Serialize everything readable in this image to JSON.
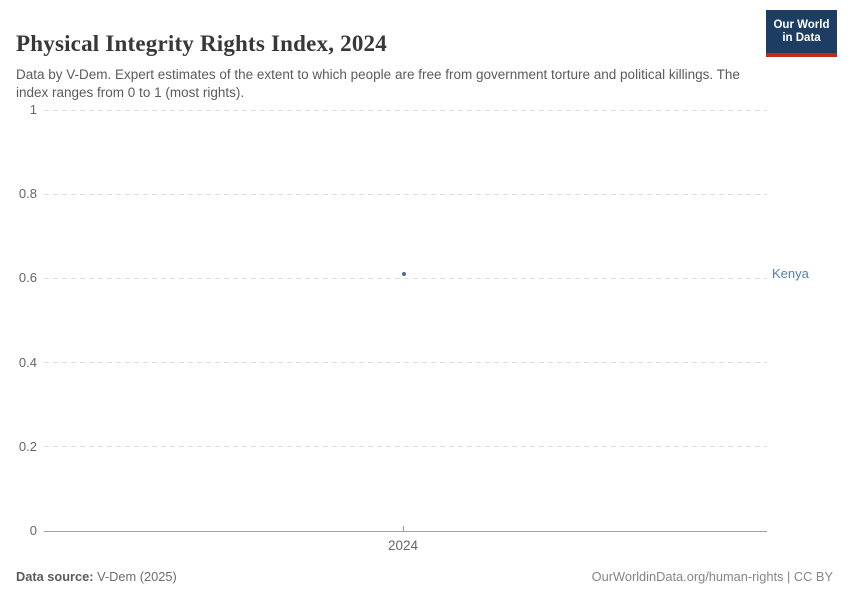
{
  "header": {
    "title": "Physical Integrity Rights Index, 2024",
    "subtitle": "Data by V-Dem. Expert estimates of the extent to which people are free from government torture and political killings. The index ranges from 0 to 1 (most rights).",
    "logo": {
      "line1": "Our World",
      "line2": "in Data"
    }
  },
  "chart_data": {
    "type": "scatter",
    "title": "Physical Integrity Rights Index, 2024",
    "x": [
      2024
    ],
    "xticks": [
      "2024"
    ],
    "series": [
      {
        "name": "Kenya",
        "values": [
          0.61
        ],
        "color": "#4c6a9c",
        "label_color": "#577eb4"
      }
    ],
    "ylim": [
      0,
      1
    ],
    "yticks": [
      0,
      0.2,
      0.4,
      0.6,
      0.8,
      1
    ],
    "ytick_labels": [
      "0",
      "0.2",
      "0.4",
      "0.6",
      "0.8",
      "1"
    ],
    "xlabel": "",
    "ylabel": "",
    "grid": "horizontal-dashed",
    "legend_position": "right-entity-label"
  },
  "footer": {
    "source_label": "Data source:",
    "source_value": "V-Dem (2025)",
    "right_text": "OurWorldinData.org/human-rights | CC BY"
  },
  "colors": {
    "logo_navy": "#1d3d63",
    "logo_red": "#c0291d",
    "grid_dashed": "#dddddd",
    "axis_solid": "#a3a3a3",
    "tick_text": "#666666",
    "point_blue": "#4c6a9c"
  }
}
